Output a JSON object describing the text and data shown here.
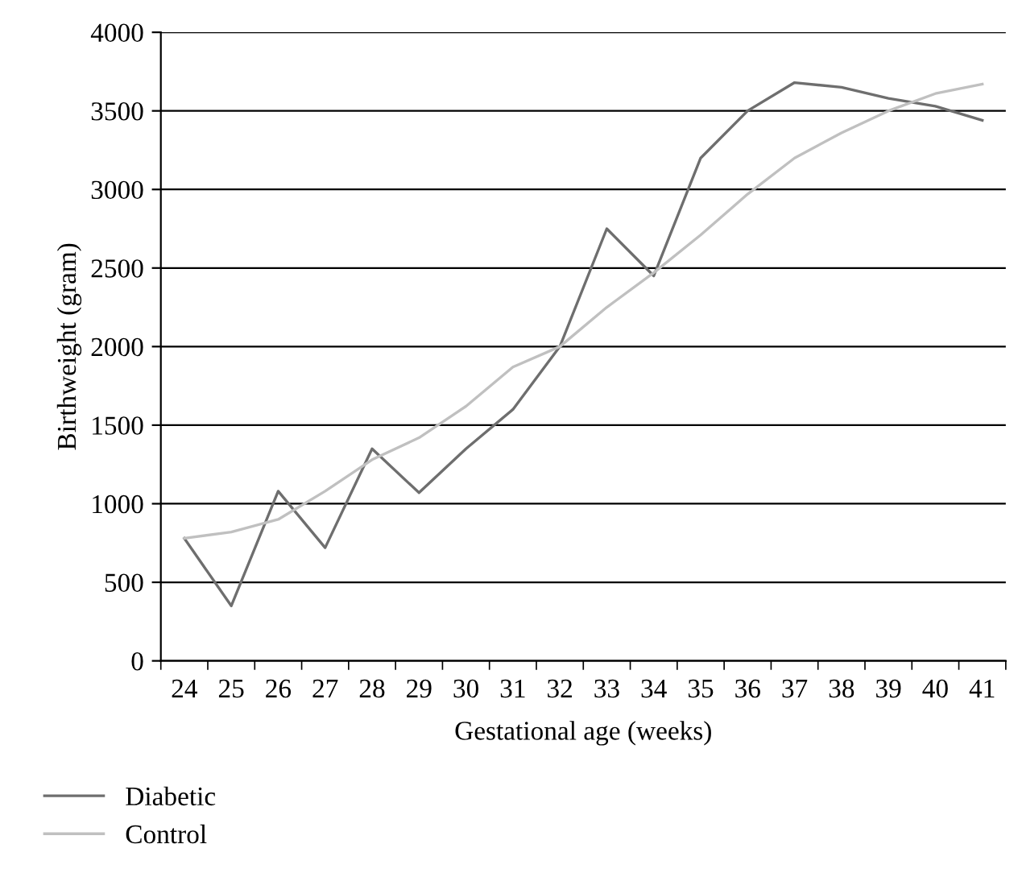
{
  "chart_data": {
    "type": "line",
    "xlabel": "Gestational age (weeks)",
    "ylabel": "Birthweight (gram)",
    "categories": [
      "24",
      "25",
      "26",
      "27",
      "28",
      "29",
      "30",
      "31",
      "32",
      "33",
      "34",
      "35",
      "36",
      "37",
      "38",
      "39",
      "40",
      "41"
    ],
    "series": [
      {
        "name": "Diabetic",
        "color": "#6e6e6e",
        "values": [
          780,
          350,
          1080,
          720,
          1350,
          1070,
          1350,
          1600,
          2000,
          2750,
          2450,
          3200,
          3500,
          3680,
          3650,
          3580,
          3530,
          3440
        ]
      },
      {
        "name": "Control",
        "color": "#c0c0c0",
        "values": [
          780,
          820,
          900,
          1080,
          1280,
          1420,
          1620,
          1870,
          2000,
          2250,
          2470,
          2710,
          2970,
          3200,
          3360,
          3500,
          3610,
          3670
        ]
      }
    ],
    "ylim": [
      0,
      4000
    ],
    "yticks": [
      0,
      500,
      1000,
      1500,
      2000,
      2500,
      3000,
      3500,
      4000
    ],
    "grid": "y",
    "legend": "bottom left",
    "marker": "none",
    "line_style": "solid"
  }
}
